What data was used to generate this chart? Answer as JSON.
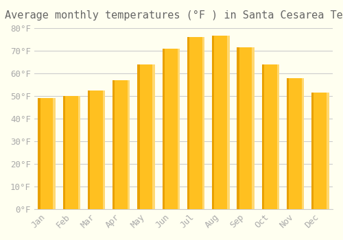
{
  "title": "Average monthly temperatures (°F ) in Santa Cesarea Terme",
  "months": [
    "Jan",
    "Feb",
    "Mar",
    "Apr",
    "May",
    "Jun",
    "Jul",
    "Aug",
    "Sep",
    "Oct",
    "Nov",
    "Dec"
  ],
  "values": [
    49,
    50,
    52.5,
    57,
    64,
    71,
    76,
    76.5,
    71.5,
    64,
    58,
    51.5
  ],
  "bar_color_main": "#FFC020",
  "bar_color_left": "#E8A000",
  "bar_color_right": "#FFD870",
  "background_color": "#FFFFF0",
  "grid_color": "#CCCCCC",
  "text_color": "#AAAAAA",
  "title_color": "#666666",
  "ylim": [
    0,
    80
  ],
  "yticks": [
    0,
    10,
    20,
    30,
    40,
    50,
    60,
    70,
    80
  ],
  "ytick_labels": [
    "0°F",
    "10°F",
    "20°F",
    "30°F",
    "40°F",
    "50°F",
    "60°F",
    "70°F",
    "80°F"
  ],
  "title_fontsize": 11,
  "tick_fontsize": 9
}
